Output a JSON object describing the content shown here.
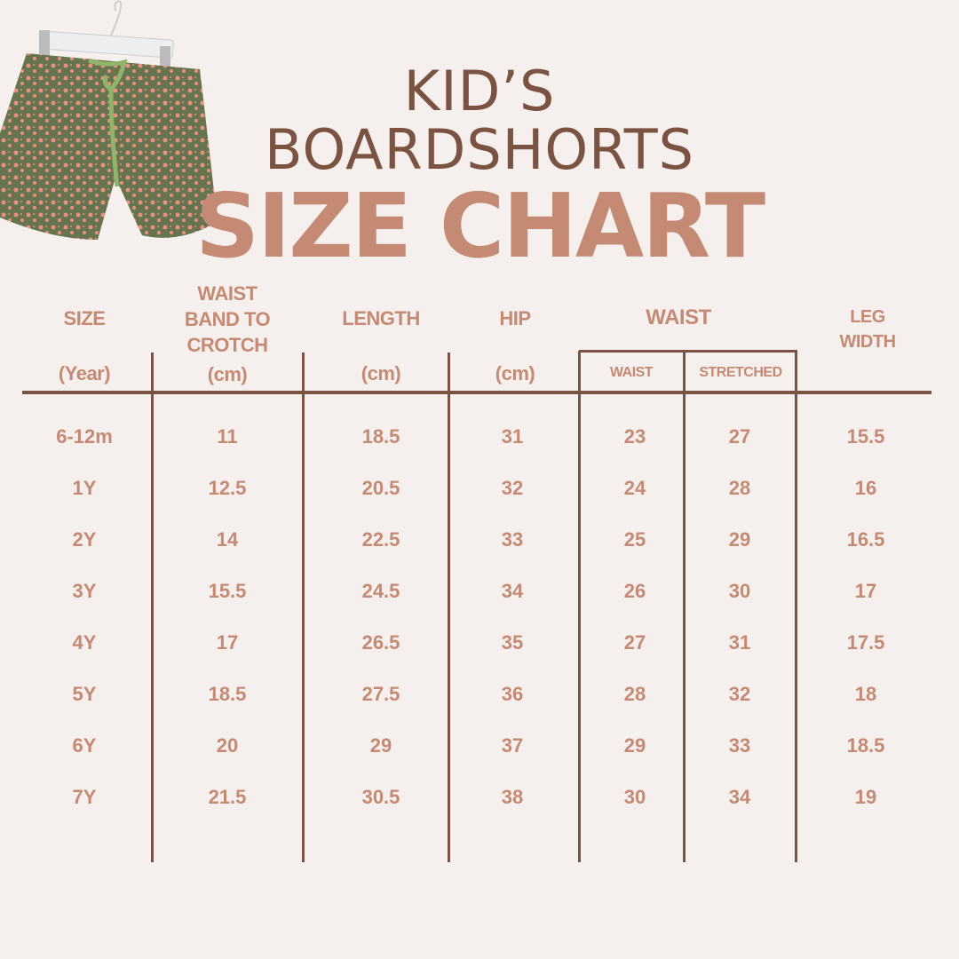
{
  "title": {
    "line1": "KID’S",
    "line2": "BOARDSHORTS",
    "line3": "SIZE CHART"
  },
  "colors": {
    "background": "#f5f0ed",
    "dark_brown": "#7a5342",
    "salmon": "#c48a74",
    "shorts_green": "#66744f",
    "shorts_print": "#e8917c",
    "drawstring": "#8fb46a"
  },
  "image": {
    "subject": "floral boardshorts on hanger icon"
  },
  "headers": {
    "size": "SIZE",
    "size_unit": "(Year)",
    "waistband_l1": "WAIST",
    "waistband_l2": "BAND TO",
    "waistband_l3": "CROTCH",
    "waistband_unit": "(cm)",
    "length": "LENGTH",
    "length_unit": "(cm)",
    "hip": "HIP",
    "hip_unit": "(cm)",
    "waist_group": "WAIST",
    "waist_sub": "WAIST",
    "stretched_sub": "STRETCHED",
    "leg_l1": "LEG",
    "leg_l2": "WIDTH"
  },
  "rows": [
    [
      "6-12m",
      "11",
      "18.5",
      "31",
      "23",
      "27",
      "15.5"
    ],
    [
      "1Y",
      "12.5",
      "20.5",
      "32",
      "24",
      "28",
      "16"
    ],
    [
      "2Y",
      "14",
      "22.5",
      "33",
      "25",
      "29",
      "16.5"
    ],
    [
      "3Y",
      "15.5",
      "24.5",
      "34",
      "26",
      "30",
      "17"
    ],
    [
      "4Y",
      "17",
      "26.5",
      "35",
      "27",
      "31",
      "17.5"
    ],
    [
      "5Y",
      "18.5",
      "27.5",
      "36",
      "28",
      "32",
      "18"
    ],
    [
      "6Y",
      "20",
      "29",
      "37",
      "29",
      "33",
      "18.5"
    ],
    [
      "7Y",
      "21.5",
      "30.5",
      "38",
      "30",
      "34",
      "19"
    ]
  ]
}
